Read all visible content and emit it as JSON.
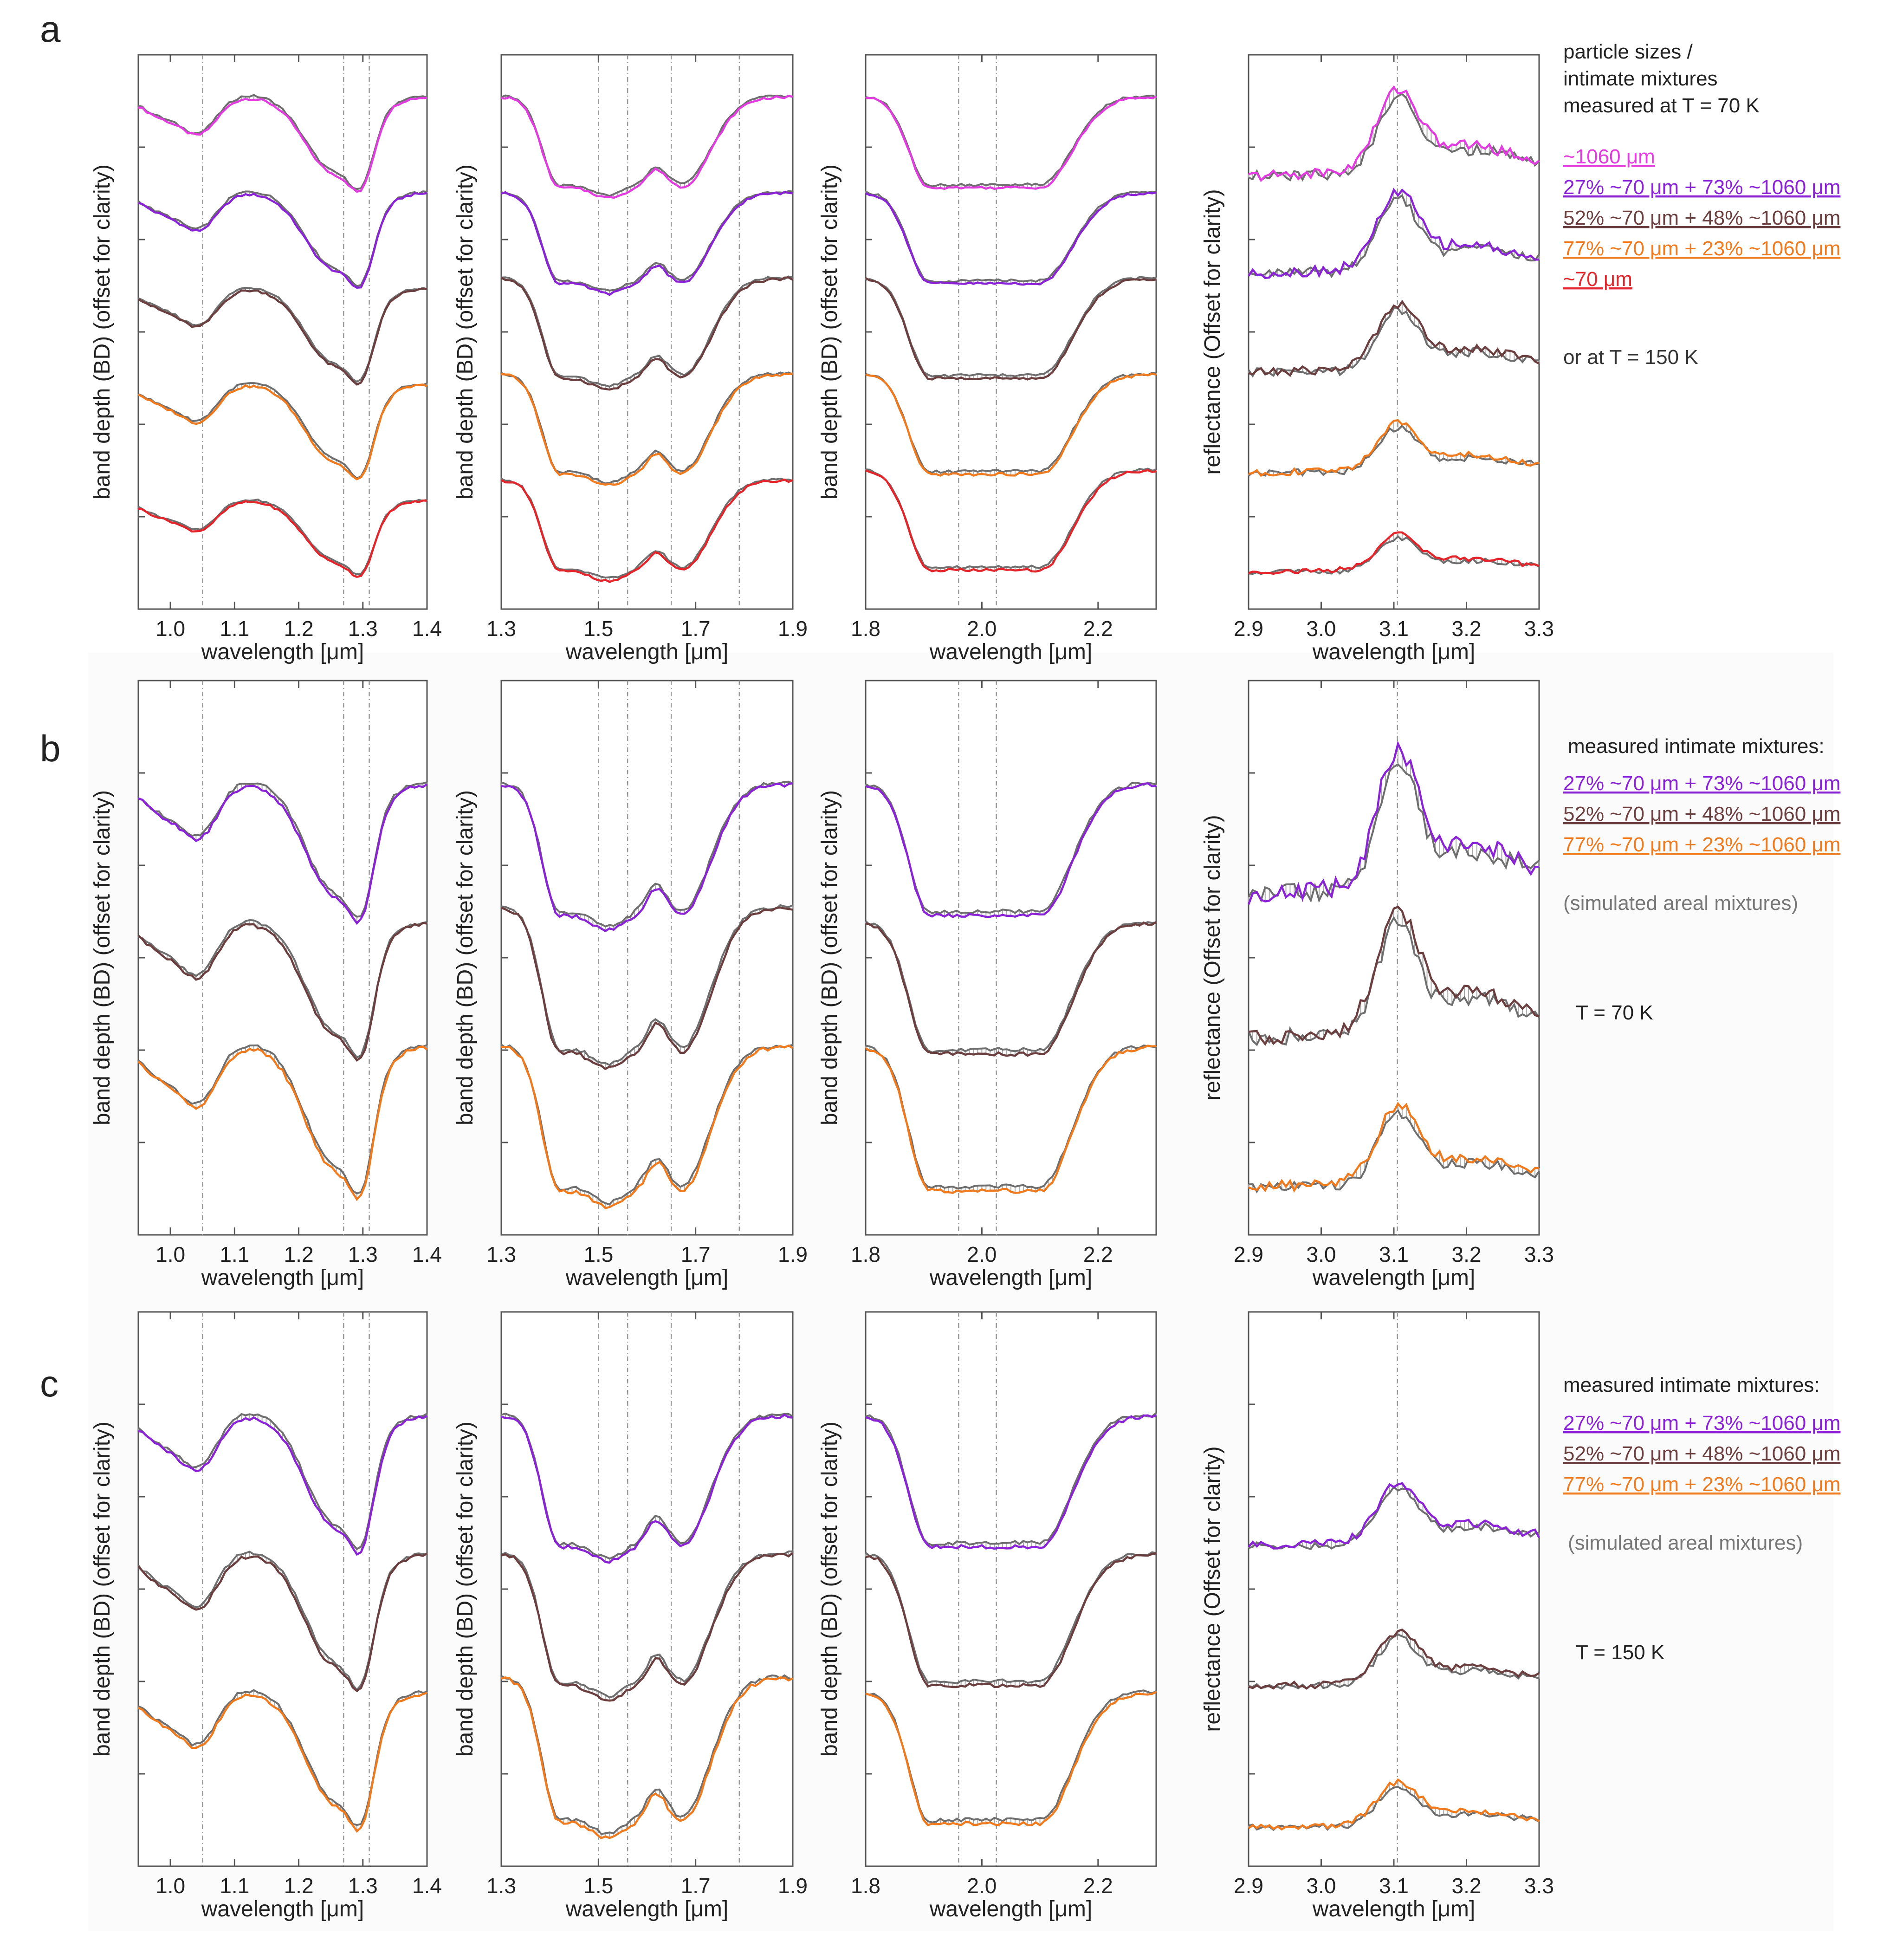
{
  "colors": {
    "magenta": "#e23be0",
    "purple": "#8a22d6",
    "brown": "#6b3f3f",
    "orange": "#f07a1e",
    "red": "#e3262b",
    "gray": "#6e6e6e",
    "lightgray": "#a9a9a9",
    "axis": "#555555",
    "panel_bg": "#f7f7f7"
  },
  "common": {
    "xlabel": "wavelength [μm]",
    "ylabel_bd": "band depth (BD) (offset for clarity)",
    "ylabel_refl": "reflectance  (Offset for clarity)"
  },
  "legends": {
    "a": {
      "header": [
        "particle sizes /",
        "intimate mixtures",
        "measured at T = 70 K"
      ],
      "items": [
        {
          "key": "s1060",
          "text": "~1060 μm"
        },
        {
          "key": "m27",
          "text": "27% ~70 μm + 73% ~1060 μm"
        },
        {
          "key": "m52",
          "text": "52% ~70 μm + 48% ~1060 μm"
        },
        {
          "key": "m77",
          "text": "77% ~70 μm + 23% ~1060 μm"
        },
        {
          "key": "s70",
          "text": "~70 μm"
        }
      ],
      "footer": "or at T = 150 K"
    },
    "b": {
      "header": "measured intimate mixtures:",
      "items": [
        {
          "key": "m27",
          "text": "27% ~70 μm + 73% ~1060 μm"
        },
        {
          "key": "m52",
          "text": "52% ~70 μm + 48% ~1060 μm"
        },
        {
          "key": "m77",
          "text": "77% ~70 μm + 23% ~1060 μm"
        }
      ],
      "note": "(simulated areal mixtures)",
      "temp": "T = 70 K"
    },
    "c": {
      "header": "measured intimate mixtures:",
      "items": [
        {
          "key": "m27",
          "text": "27% ~70 μm + 73% ~1060 μm"
        },
        {
          "key": "m52",
          "text": "52% ~70 μm + 48% ~1060 μm"
        },
        {
          "key": "m77",
          "text": "77% ~70 μm + 23% ~1060 μm"
        }
      ],
      "note": "(simulated areal mixtures)",
      "temp": "T = 150 K"
    }
  },
  "chart_data": [
    {
      "row": "a",
      "row_label": "a",
      "panels": [
        {
          "type": "line",
          "xlim": [
            0.95,
            1.4
          ],
          "xticks": [
            "1.0",
            "1.1",
            "1.2",
            "1.3",
            "1.4"
          ],
          "xtick_values": [
            1.0,
            1.1,
            1.2,
            1.3,
            1.4
          ],
          "ref_lines": [
            1.05,
            1.27,
            1.31
          ],
          "ylabel": "band depth (BD) (offset for clarity)",
          "series": [
            {
              "name": "~1060 μm at 70 K vs 150 K",
              "color_key": "magenta",
              "offset": 4,
              "amp": 1.0
            },
            {
              "name": "27% ~70 μm + 73% ~1060 μm at 70 K vs 150 K",
              "color_key": "purple",
              "offset": 3,
              "amp": 1.0
            },
            {
              "name": "52% ~70 μm + 48% ~1060 μm at 70 K vs 150 K",
              "color_key": "brown",
              "offset": 2,
              "amp": 1.0
            },
            {
              "name": "77% ~70 μm + 23% ~1060 μm at 70 K vs 150 K",
              "color_key": "orange",
              "offset": 1,
              "amp": 1.0
            },
            {
              "name": "~70 μm at 70 K vs 150 K",
              "color_key": "red",
              "offset": 0,
              "amp": 0.8
            }
          ]
        },
        {
          "type": "line",
          "xlim": [
            1.3,
            1.9
          ],
          "xticks": [
            "1.3",
            "1.5",
            "1.7",
            "1.9"
          ],
          "xtick_values": [
            1.3,
            1.5,
            1.7,
            1.9
          ],
          "ref_lines": [
            1.5,
            1.56,
            1.65,
            1.79
          ],
          "ylabel": "band depth (BD) (offset for clarity)",
          "series": [
            {
              "name": "~1060 μm at 70 K vs 150 K",
              "color_key": "magenta",
              "offset": 4,
              "amp": 1.0
            },
            {
              "name": "27% ~70 μm + 73% ~1060 μm at 70 K vs 150 K",
              "color_key": "purple",
              "offset": 3,
              "amp": 1.0
            },
            {
              "name": "52% ~70 μm + 48% ~1060 μm at 70 K vs 150 K",
              "color_key": "brown",
              "offset": 2,
              "amp": 1.1
            },
            {
              "name": "77% ~70 μm + 23% ~1060 μm at 70 K vs 150 K",
              "color_key": "orange",
              "offset": 1,
              "amp": 1.1
            },
            {
              "name": "~70 μm at 70 K vs 150 K",
              "color_key": "red",
              "offset": 0,
              "amp": 1.0
            }
          ]
        },
        {
          "type": "line",
          "xlim": [
            1.8,
            2.3
          ],
          "xticks": [
            "1.8",
            "2.0",
            "2.2"
          ],
          "xtick_values": [
            1.8,
            2.0,
            2.2
          ],
          "ref_lines": [
            1.96,
            2.025
          ],
          "ylabel": "band depth (BD) (offset for clarity)",
          "series": [
            {
              "name": "~1060 μm at 70 K vs 150 K",
              "color_key": "magenta",
              "offset": 4,
              "amp": 1.0
            },
            {
              "name": "27% ~70 μm + 73% ~1060 μm at 70 K vs 150 K",
              "color_key": "purple",
              "offset": 3,
              "amp": 1.0
            },
            {
              "name": "52% ~70 μm + 48% ~1060 μm at 70 K vs 150 K",
              "color_key": "brown",
              "offset": 2,
              "amp": 1.1
            },
            {
              "name": "77% ~70 μm + 23% ~1060 μm at 70 K vs 150 K",
              "color_key": "orange",
              "offset": 1,
              "amp": 1.1
            },
            {
              "name": "~70 μm at 70 K vs 150 K",
              "color_key": "red",
              "offset": 0,
              "amp": 1.1
            }
          ]
        },
        {
          "type": "line",
          "xlim": [
            2.9,
            3.3
          ],
          "xticks": [
            "2.9",
            "3.0",
            "3.1",
            "3.2",
            "3.3"
          ],
          "xtick_values": [
            2.9,
            3.0,
            3.1,
            3.2,
            3.3
          ],
          "ref_lines": [
            3.105
          ],
          "ylabel": "reflectance  (Offset for clarity)",
          "series": [
            {
              "name": "~1060 μm at 70 K vs 150 K",
              "color_key": "magenta",
              "offset": 4,
              "amp": 1.4
            },
            {
              "name": "27% ~70 μm + 73% ~1060 μm at 70 K vs 150 K",
              "color_key": "purple",
              "offset": 3,
              "amp": 1.3
            },
            {
              "name": "52% ~70 μm + 48% ~1060 μm at 70 K vs 150 K",
              "color_key": "brown",
              "offset": 2,
              "amp": 1.1
            },
            {
              "name": "77% ~70 μm + 23% ~1060 μm at 70 K vs 150 K",
              "color_key": "orange",
              "offset": 1,
              "amp": 0.8
            },
            {
              "name": "~70 μm at 70 K vs 150 K",
              "color_key": "red",
              "offset": 0,
              "amp": 0.6
            }
          ]
        }
      ]
    },
    {
      "row": "b",
      "row_label": "b",
      "panels": [
        {
          "type": "line",
          "xlim": [
            0.95,
            1.4
          ],
          "xticks": [
            "1.0",
            "1.1",
            "1.2",
            "1.3",
            "1.4"
          ],
          "xtick_values": [
            1.0,
            1.1,
            1.2,
            1.3,
            1.4
          ],
          "ref_lines": [
            1.05,
            1.27,
            1.31
          ],
          "ylabel": "band depth (BD) (offset for clarity)",
          "series": [
            {
              "name": "27% ~70 μm + 73% ~1060 μm vs simulated areal mixture (70 K)",
              "color_key": "purple",
              "offset": 2,
              "amp": 1.0
            },
            {
              "name": "52% ~70 μm + 48% ~1060 μm vs simulated areal mixture (70 K)",
              "color_key": "brown",
              "offset": 1,
              "amp": 1.0
            },
            {
              "name": "77% ~70 μm + 23% ~1060 μm vs simulated areal mixture (70 K)",
              "color_key": "orange",
              "offset": 0,
              "amp": 1.1
            }
          ]
        },
        {
          "type": "line",
          "xlim": [
            1.3,
            1.9
          ],
          "xticks": [
            "1.3",
            "1.5",
            "1.7",
            "1.9"
          ],
          "xtick_values": [
            1.3,
            1.5,
            1.7,
            1.9
          ],
          "ref_lines": [
            1.5,
            1.56,
            1.65,
            1.79
          ],
          "ylabel": "band depth (BD) (offset for clarity)",
          "series": [
            {
              "name": "27% ~70 μm + 73% ~1060 μm vs simulated areal mixture (70 K)",
              "color_key": "purple",
              "offset": 2,
              "amp": 1.0
            },
            {
              "name": "52% ~70 μm + 48% ~1060 μm vs simulated areal mixture (70 K)",
              "color_key": "brown",
              "offset": 1,
              "amp": 1.1
            },
            {
              "name": "77% ~70 μm + 23% ~1060 μm vs simulated areal mixture (70 K)",
              "color_key": "orange",
              "offset": 0,
              "amp": 1.1
            }
          ]
        },
        {
          "type": "line",
          "xlim": [
            1.8,
            2.3
          ],
          "xticks": [
            "1.8",
            "2.0",
            "2.2"
          ],
          "xtick_values": [
            1.8,
            2.0,
            2.2
          ],
          "ref_lines": [
            1.96,
            2.025
          ],
          "ylabel": "band depth (BD) (offset for clarity)",
          "series": [
            {
              "name": "27% ~70 μm + 73% ~1060 μm vs simulated areal mixture (70 K)",
              "color_key": "purple",
              "offset": 2,
              "amp": 1.0
            },
            {
              "name": "52% ~70 μm + 48% ~1060 μm vs simulated areal mixture (70 K)",
              "color_key": "brown",
              "offset": 1,
              "amp": 1.0
            },
            {
              "name": "77% ~70 μm + 23% ~1060 μm vs simulated areal mixture (70 K)",
              "color_key": "orange",
              "offset": 0,
              "amp": 1.1
            }
          ]
        },
        {
          "type": "line",
          "xlim": [
            2.9,
            3.3
          ],
          "xticks": [
            "2.9",
            "3.0",
            "3.1",
            "3.2",
            "3.3"
          ],
          "xtick_values": [
            2.9,
            3.0,
            3.1,
            3.2,
            3.3
          ],
          "ref_lines": [
            3.105
          ],
          "ylabel": "reflectance  (Offset for clarity)",
          "series": [
            {
              "name": "27% ~70 μm + 73% ~1060 μm vs simulated areal mixture (70 K)",
              "color_key": "purple",
              "offset": 2,
              "amp": 1.6
            },
            {
              "name": "52% ~70 μm + 48% ~1060 μm vs simulated areal mixture (70 K)",
              "color_key": "brown",
              "offset": 1,
              "amp": 1.4
            },
            {
              "name": "77% ~70 μm + 23% ~1060 μm vs simulated areal mixture (70 K)",
              "color_key": "orange",
              "offset": 0,
              "amp": 0.9
            }
          ]
        }
      ]
    },
    {
      "row": "c",
      "row_label": "c",
      "panels": [
        {
          "type": "line",
          "xlim": [
            0.95,
            1.4
          ],
          "xticks": [
            "1.0",
            "1.1",
            "1.2",
            "1.3",
            "1.4"
          ],
          "xtick_values": [
            1.0,
            1.1,
            1.2,
            1.3,
            1.4
          ],
          "ref_lines": [
            1.05,
            1.27,
            1.31
          ],
          "ylabel": "band depth (BD) (offset for clarity)",
          "series": [
            {
              "name": "27% ~70 μm + 73% ~1060 μm vs simulated areal mixture (150 K)",
              "color_key": "purple",
              "offset": 2,
              "amp": 1.0
            },
            {
              "name": "52% ~70 μm + 48% ~1060 μm vs simulated areal mixture (150 K)",
              "color_key": "brown",
              "offset": 1,
              "amp": 1.0
            },
            {
              "name": "77% ~70 μm + 23% ~1060 μm vs simulated areal mixture (150 K)",
              "color_key": "orange",
              "offset": 0,
              "amp": 1.0
            }
          ]
        },
        {
          "type": "line",
          "xlim": [
            1.3,
            1.9
          ],
          "xticks": [
            "1.3",
            "1.5",
            "1.7",
            "1.9"
          ],
          "xtick_values": [
            1.3,
            1.5,
            1.7,
            1.9
          ],
          "ref_lines": [
            1.5,
            1.56,
            1.65,
            1.79
          ],
          "ylabel": "band depth (BD) (offset for clarity)",
          "series": [
            {
              "name": "27% ~70 μm + 73% ~1060 μm vs simulated areal mixture (150 K)",
              "color_key": "purple",
              "offset": 2,
              "amp": 1.0
            },
            {
              "name": "52% ~70 μm + 48% ~1060 μm vs simulated areal mixture (150 K)",
              "color_key": "brown",
              "offset": 1,
              "amp": 1.0
            },
            {
              "name": "77% ~70 μm + 23% ~1060 μm vs simulated areal mixture (150 K)",
              "color_key": "orange",
              "offset": 0,
              "amp": 1.1
            }
          ]
        },
        {
          "type": "line",
          "xlim": [
            1.8,
            2.3
          ],
          "xticks": [
            "1.8",
            "2.0",
            "2.2"
          ],
          "xtick_values": [
            1.8,
            2.0,
            2.2
          ],
          "ref_lines": [
            1.96,
            2.025
          ],
          "ylabel": "band depth (BD) (offset for clarity)",
          "series": [
            {
              "name": "27% ~70 μm + 73% ~1060 μm vs simulated areal mixture (150 K)",
              "color_key": "purple",
              "offset": 2,
              "amp": 1.0
            },
            {
              "name": "52% ~70 μm + 48% ~1060 μm vs simulated areal mixture (150 K)",
              "color_key": "brown",
              "offset": 1,
              "amp": 1.0
            },
            {
              "name": "77% ~70 μm + 23% ~1060 μm vs simulated areal mixture (150 K)",
              "color_key": "orange",
              "offset": 0,
              "amp": 1.0
            }
          ]
        },
        {
          "type": "line",
          "xlim": [
            2.9,
            3.3
          ],
          "xticks": [
            "2.9",
            "3.0",
            "3.1",
            "3.2",
            "3.3"
          ],
          "xtick_values": [
            2.9,
            3.0,
            3.1,
            3.2,
            3.3
          ],
          "ref_lines": [
            3.105
          ],
          "ylabel": "reflectance  (Offset for clarity)",
          "series": [
            {
              "name": "27% ~70 μm + 73% ~1060 μm vs simulated areal mixture (150 K)",
              "color_key": "purple",
              "offset": 2,
              "amp": 0.7
            },
            {
              "name": "52% ~70 μm + 48% ~1060 μm vs simulated areal mixture (150 K)",
              "color_key": "brown",
              "offset": 1,
              "amp": 0.6
            },
            {
              "name": "77% ~70 μm + 23% ~1060 μm vs simulated areal mixture (150 K)",
              "color_key": "orange",
              "offset": 0,
              "amp": 0.5
            }
          ]
        }
      ]
    }
  ]
}
